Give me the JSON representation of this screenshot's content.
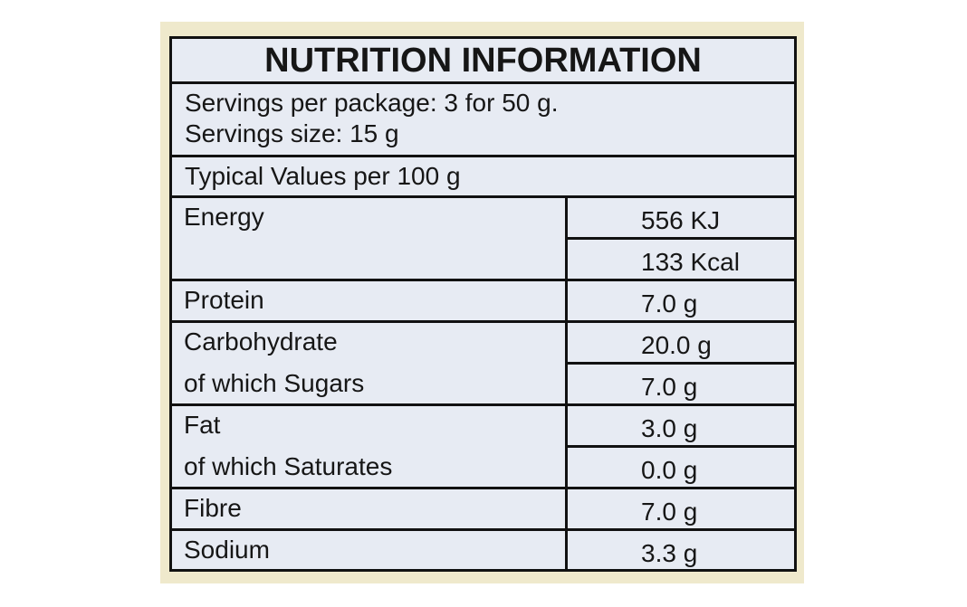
{
  "header": {
    "title": "NUTRITION INFORMATION",
    "servings_per_package": "Servings per package: 3 for 50 g.",
    "serving_size": "Servings size: 15 g"
  },
  "table": {
    "caption": "Typical Values per 100 g",
    "groups": [
      {
        "items": [
          {
            "label": "Energy",
            "value": "556 KJ"
          },
          {
            "value": "133 Kcal"
          }
        ]
      },
      {
        "items": [
          {
            "label": "Protein",
            "value": "7.0 g"
          }
        ]
      },
      {
        "items": [
          {
            "label": "Carbohydrate",
            "value": "20.0 g"
          },
          {
            "label": "of which Sugars",
            "value": "7.0 g"
          }
        ]
      },
      {
        "items": [
          {
            "label": "Fat",
            "value": "3.0 g"
          },
          {
            "label": "of which Saturates",
            "value": "0.0 g"
          }
        ]
      },
      {
        "items": [
          {
            "label": "Fibre",
            "value": "7.0 g"
          }
        ]
      },
      {
        "items": [
          {
            "label": "Sodium",
            "value": "3.3 g"
          }
        ]
      }
    ]
  }
}
